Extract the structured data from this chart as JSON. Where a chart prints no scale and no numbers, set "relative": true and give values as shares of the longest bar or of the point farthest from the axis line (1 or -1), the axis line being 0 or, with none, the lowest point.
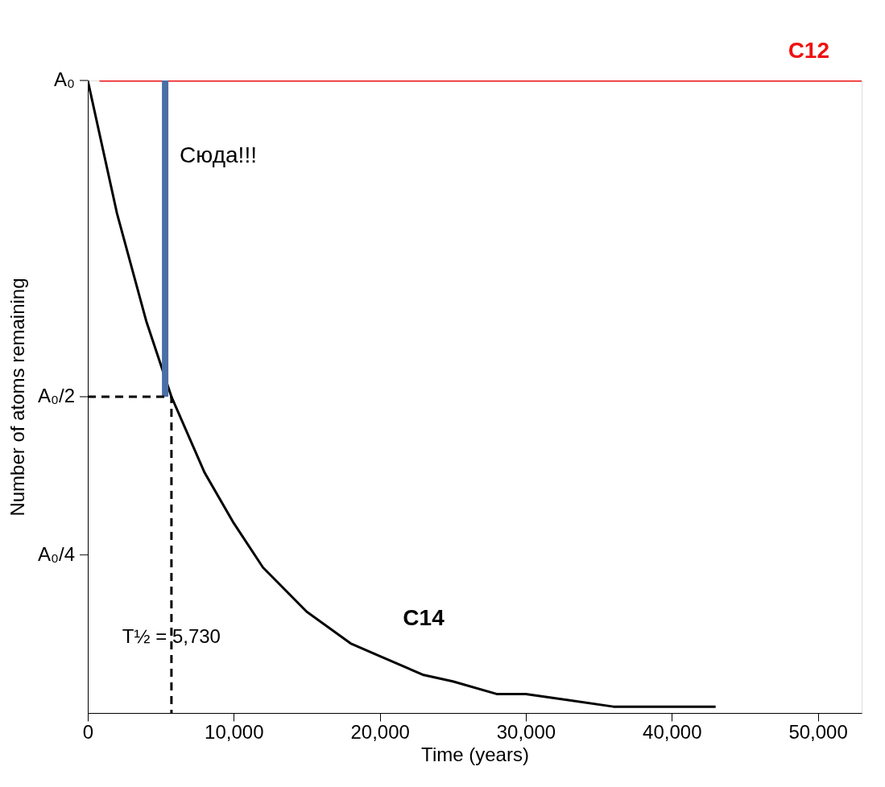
{
  "chart_data": {
    "type": "line",
    "xlabel": "Time (years)",
    "ylabel": "Number of atoms remaining",
    "xlim": [
      0,
      53000
    ],
    "xticks": [
      {
        "value": 0,
        "label": "0"
      },
      {
        "value": 10000,
        "label": "10,000"
      },
      {
        "value": 20000,
        "label": "20,000"
      },
      {
        "value": 30000,
        "label": "30,000"
      },
      {
        "value": 40000,
        "label": "40,000"
      },
      {
        "value": 50000,
        "label": "50,000"
      }
    ],
    "relative": true,
    "grid": false,
    "marker": "none",
    "series": [
      {
        "name": "C14",
        "color": "#000000",
        "x": [
          0,
          2000,
          4000,
          5730,
          8000,
          10000,
          12000,
          15000,
          18000,
          20000,
          23000,
          25000,
          28000,
          30000,
          33000,
          36000,
          40000,
          43000
        ],
        "values": [
          1,
          0.79,
          0.62,
          0.5,
          0.38,
          0.3,
          0.23,
          0.16,
          0.11,
          0.09,
          0.06,
          0.05,
          0.03,
          0.03,
          0.02,
          0.01,
          0.01,
          0.01
        ]
      },
      {
        "name": "C12",
        "color": "#ee1111",
        "x": [
          800,
          53000
        ],
        "values": [
          1,
          1
        ]
      },
      {
        "color": "#4a6fa5",
        "x": [
          5300,
          5300
        ],
        "values": [
          0.5,
          1
        ]
      },
      {
        "color": "#000000",
        "line_style": "dashed",
        "x": [
          0,
          5730,
          5730
        ],
        "values": [
          0.5,
          0.5,
          0
        ]
      }
    ],
    "annotations": [
      {
        "text": "Сюда!!!",
        "x": 5300,
        "y": 0.88
      },
      {
        "text": "T½ = 5,730",
        "x": 5730,
        "y": 0.12
      },
      "A₀",
      "A₀/2",
      "A₀/4"
    ]
  }
}
